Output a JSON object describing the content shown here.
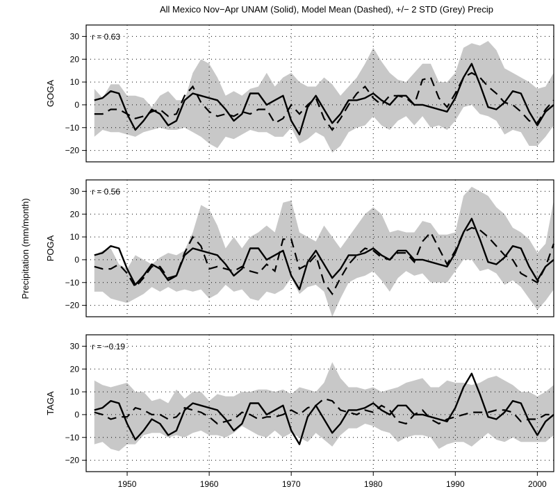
{
  "chart_data": {
    "type": "line",
    "title": "All Mexico Nov−Apr UNAM (Solid), Model Mean (Dashed), +/− 2 STD (Grey) Precip",
    "ylabel": "Precipitation (mm/month)",
    "xlim": [
      1945,
      2002
    ],
    "ylim": [
      -25,
      35
    ],
    "x_ticks": [
      1950,
      1960,
      1970,
      1980,
      1990,
      2000
    ],
    "y_ticks": [
      -20,
      -10,
      0,
      10,
      20,
      30
    ],
    "grid": true,
    "x": [
      1946,
      1947,
      1948,
      1949,
      1950,
      1951,
      1952,
      1953,
      1954,
      1955,
      1956,
      1957,
      1958,
      1959,
      1960,
      1961,
      1962,
      1963,
      1964,
      1965,
      1966,
      1967,
      1968,
      1969,
      1970,
      1971,
      1972,
      1973,
      1974,
      1975,
      1976,
      1977,
      1978,
      1979,
      1980,
      1981,
      1982,
      1983,
      1984,
      1985,
      1986,
      1987,
      1988,
      1989,
      1990,
      1991,
      1992,
      1993,
      1994,
      1995,
      1996,
      1997,
      1998,
      1999,
      2000,
      2001,
      2002
    ],
    "observed": [
      2,
      3,
      6,
      5,
      -4,
      -11,
      -7,
      -2,
      -4,
      -9,
      -7,
      2,
      5,
      4,
      3,
      2,
      -2,
      -7,
      -4,
      5,
      5,
      0,
      2,
      4,
      -7,
      -13,
      -1,
      4,
      -2,
      -8,
      -4,
      2,
      2,
      3,
      5,
      2,
      0,
      4,
      4,
      0,
      0,
      -1,
      -2,
      -3,
      3,
      12,
      18,
      9,
      -1,
      -2,
      1,
      6,
      5,
      -3,
      -9,
      -3,
      0
    ],
    "panels": [
      {
        "name": "GOGA",
        "r_label": "r = 0.63",
        "model": [
          -4,
          -4,
          -2,
          -2,
          -4,
          -6,
          -5,
          -3,
          -2,
          -5,
          -4,
          4,
          8,
          1,
          -3,
          -5,
          -4,
          -5,
          -3,
          -4,
          -2,
          -2,
          -8,
          -6,
          0,
          -4,
          0,
          3,
          -6,
          -11,
          -6,
          0,
          5,
          8,
          3,
          0,
          4,
          4,
          3,
          0,
          11,
          12,
          3,
          -1,
          5,
          12,
          14,
          12,
          8,
          5,
          1,
          0,
          -3,
          -7,
          -8,
          -2,
          2
        ],
        "lower": [
          -14,
          -11,
          -12,
          -12,
          -13,
          -14,
          -12,
          -11,
          -10,
          -11,
          -11,
          -10,
          -12,
          -14,
          -17,
          -19,
          -14,
          -15,
          -13,
          -11,
          -12,
          -12,
          -14,
          -14,
          -10,
          -17,
          -15,
          -12,
          -14,
          -21,
          -18,
          -12,
          -10,
          -9,
          -5,
          -9,
          -11,
          -7,
          -5,
          -9,
          -5,
          -10,
          -9,
          -11,
          -7,
          -1,
          0,
          -4,
          -5,
          -7,
          -13,
          -11,
          -12,
          -18,
          -18,
          -14,
          -9
        ],
        "upper": [
          7,
          3,
          9,
          9,
          4,
          4,
          3,
          -1,
          4,
          6,
          2,
          2,
          14,
          20,
          18,
          12,
          4,
          6,
          4,
          7,
          8,
          14,
          8,
          12,
          14,
          10,
          8,
          8,
          12,
          9,
          4,
          8,
          12,
          18,
          25,
          19,
          14,
          11,
          10,
          14,
          18,
          18,
          10,
          10,
          14,
          25,
          27,
          26,
          28,
          24,
          16,
          14,
          12,
          10,
          7,
          8,
          14
        ]
      },
      {
        "name": "POGA",
        "r_label": "r = 0.56",
        "model": [
          -3,
          -4,
          -4,
          -2,
          -6,
          -12,
          -8,
          -3,
          -3,
          -8,
          -7,
          3,
          10,
          6,
          -4,
          -3,
          -4,
          -5,
          -3,
          -5,
          -6,
          -2,
          -5,
          9,
          9,
          -4,
          -2,
          2,
          -10,
          -15,
          -8,
          -2,
          2,
          5,
          4,
          1,
          0,
          3,
          3,
          -1,
          8,
          12,
          5,
          -2,
          4,
          12,
          14,
          13,
          10,
          6,
          2,
          0,
          -6,
          -8,
          -10,
          -3,
          7
        ],
        "lower": [
          -14,
          -14,
          -17,
          -18,
          -19,
          -17,
          -15,
          -12,
          -14,
          -12,
          -14,
          -13,
          -14,
          -13,
          -17,
          -15,
          -11,
          -14,
          -13,
          -17,
          -18,
          -14,
          -15,
          -13,
          -8,
          -15,
          -12,
          -11,
          -14,
          -25,
          -17,
          -10,
          -8,
          -7,
          -5,
          -9,
          -14,
          -8,
          -5,
          -7,
          -6,
          -10,
          -10,
          -10,
          -5,
          0,
          0,
          -5,
          -4,
          -6,
          -11,
          -9,
          -12,
          -17,
          -22,
          -18,
          -13
        ],
        "upper": [
          2,
          4,
          5,
          -2,
          -4,
          2,
          0,
          -2,
          1,
          3,
          2,
          4,
          12,
          24,
          22,
          15,
          5,
          10,
          5,
          10,
          12,
          15,
          12,
          25,
          26,
          12,
          10,
          8,
          15,
          10,
          5,
          10,
          15,
          20,
          23,
          20,
          12,
          13,
          12,
          12,
          17,
          16,
          11,
          11,
          12,
          28,
          32,
          30,
          28,
          23,
          20,
          14,
          12,
          9,
          3,
          7,
          26
        ]
      },
      {
        "name": "TAGA",
        "r_label": "r = −0.19",
        "model": [
          1,
          0,
          -2,
          -1,
          -1,
          3,
          2,
          0,
          0,
          -2,
          -1,
          3,
          2,
          1,
          -1,
          -4,
          -3,
          -2,
          1,
          0,
          -2,
          -1,
          -1,
          0,
          2,
          0,
          3,
          4,
          7,
          6,
          2,
          1,
          0,
          2,
          1,
          4,
          2,
          -3,
          -4,
          0,
          2,
          -2,
          -4,
          -2,
          -1,
          0,
          1,
          1,
          1,
          2,
          2,
          1,
          -3,
          -2,
          -2,
          0,
          0
        ],
        "lower": [
          -13,
          -12,
          -15,
          -16,
          -13,
          -13,
          -9,
          -8,
          -8,
          -10,
          -9,
          -10,
          -8,
          -7,
          -9,
          -9,
          -10,
          -8,
          -5,
          -7,
          -9,
          -10,
          -7,
          -10,
          -8,
          -10,
          -12,
          -8,
          -11,
          -14,
          -9,
          -6,
          -6,
          -4,
          -5,
          -7,
          -8,
          -12,
          -10,
          -9,
          -9,
          -10,
          -15,
          -13,
          -12,
          -12,
          -14,
          -11,
          -8,
          -11,
          -12,
          -10,
          -12,
          -12,
          -12,
          -12,
          -9
        ],
        "upper": [
          15,
          13,
          12,
          13,
          14,
          10,
          10,
          6,
          7,
          5,
          11,
          7,
          10,
          10,
          6,
          9,
          8,
          8,
          10,
          10,
          11,
          11,
          10,
          11,
          9,
          12,
          11,
          10,
          14,
          23,
          16,
          12,
          12,
          11,
          12,
          10,
          11,
          12,
          14,
          15,
          16,
          12,
          12,
          15,
          14,
          14,
          13,
          14,
          16,
          17,
          15,
          13,
          10,
          10,
          8,
          10,
          13
        ]
      }
    ]
  }
}
